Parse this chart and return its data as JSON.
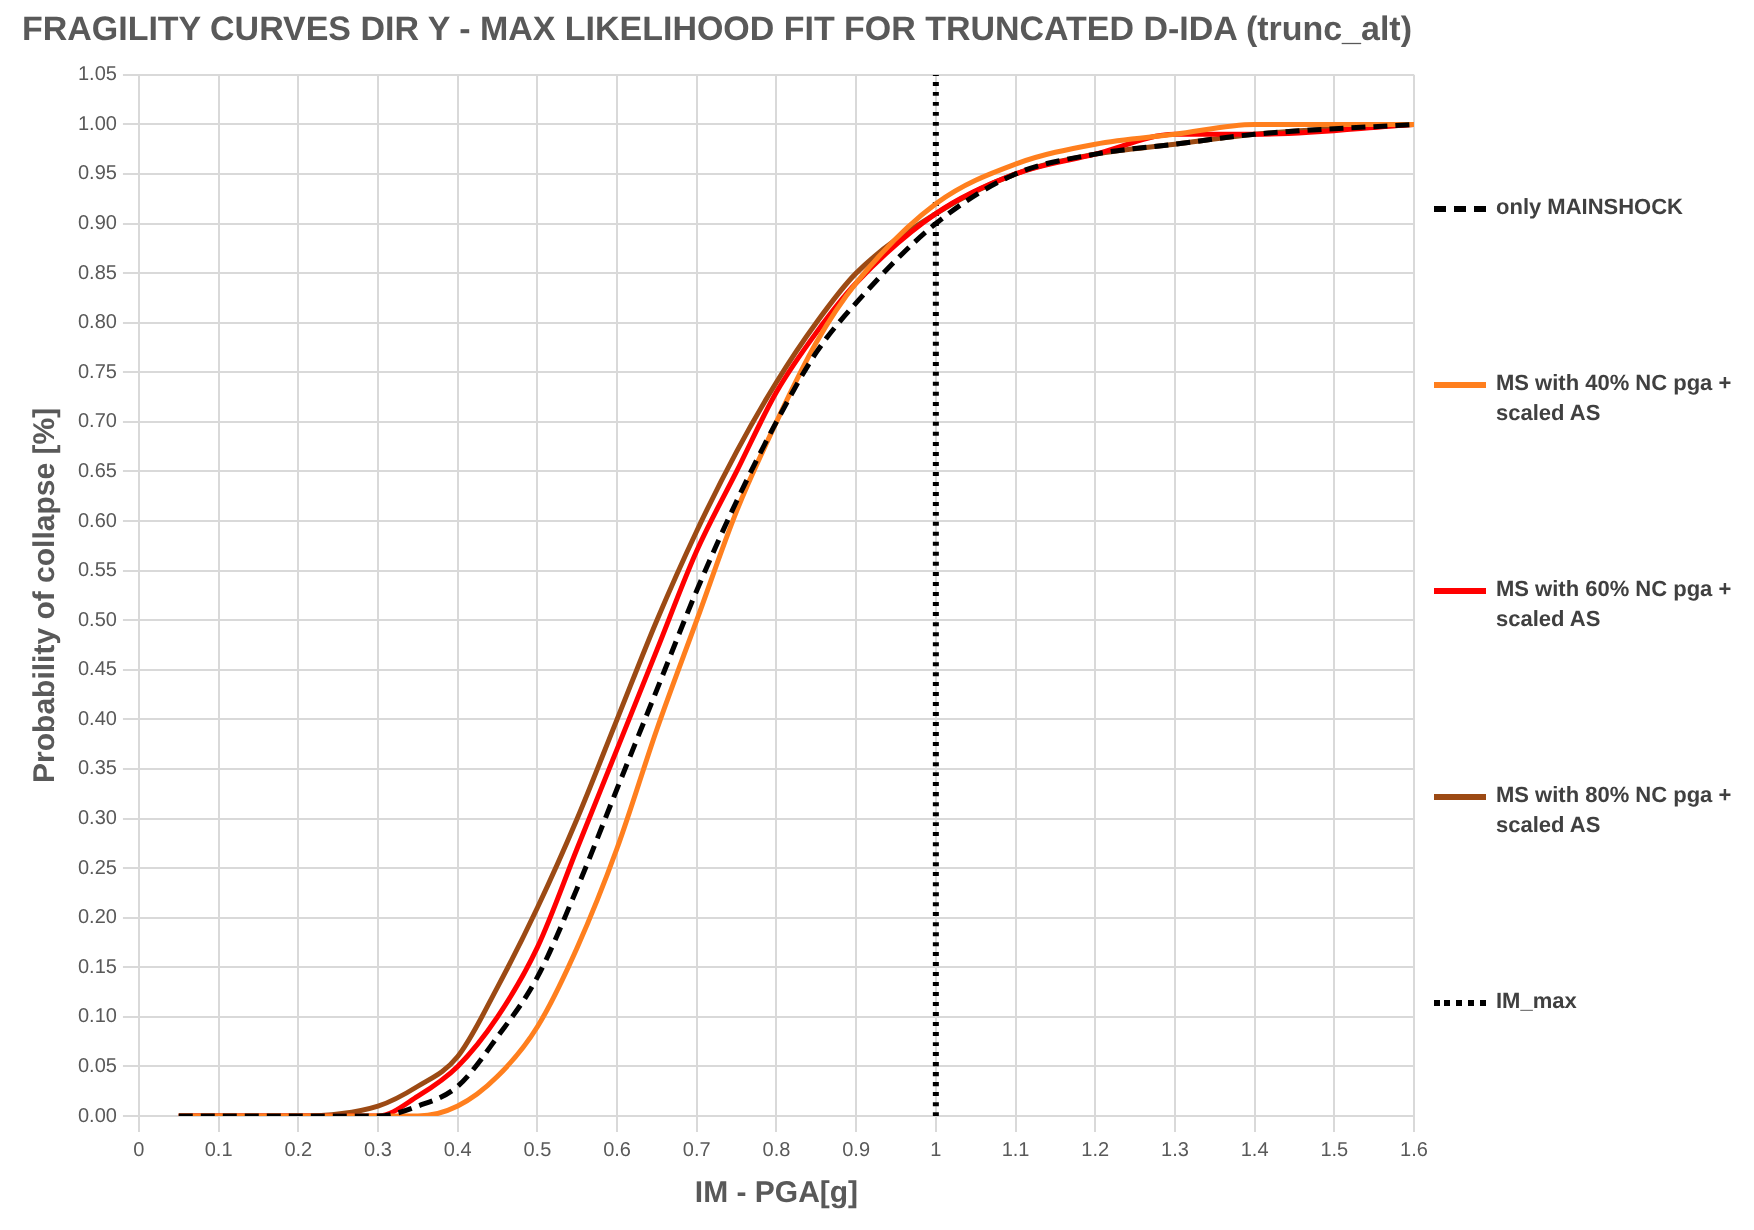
{
  "chart_data": {
    "type": "line",
    "title": "FRAGILITY CURVES DIR Y - MAX LIKELIHOOD FIT FOR TRUNCATED D-IDA (trunc_alt)",
    "xlabel": "IM - PGA[g]",
    "ylabel": "Probability of collapse [%]",
    "xlim": [
      0,
      1.6
    ],
    "xticks": [
      0,
      0.1,
      0.2,
      0.3,
      0.4,
      0.5,
      0.6,
      0.7,
      0.8,
      0.9,
      1,
      1.1,
      1.2,
      1.3,
      1.4,
      1.5,
      1.6
    ],
    "ylim": [
      0,
      1.05
    ],
    "yticks": [
      {
        "value": 0,
        "label": "0.00"
      },
      {
        "value": 0.05,
        "label": "0.05"
      },
      {
        "value": 0.1,
        "label": "0.10"
      },
      {
        "value": 0.15,
        "label": "0.15"
      },
      {
        "value": 0.2,
        "label": "0.20"
      },
      {
        "value": 0.25,
        "label": "0.25"
      },
      {
        "value": 0.3,
        "label": "0.30"
      },
      {
        "value": 0.35,
        "label": "0.35"
      },
      {
        "value": 0.4,
        "label": "0.40"
      },
      {
        "value": 0.45,
        "label": "0.45"
      },
      {
        "value": 0.5,
        "label": "0.50"
      },
      {
        "value": 0.55,
        "label": "0.55"
      },
      {
        "value": 0.6,
        "label": "0.60"
      },
      {
        "value": 0.65,
        "label": "0.65"
      },
      {
        "value": 0.7,
        "label": "0.70"
      },
      {
        "value": 0.75,
        "label": "0.75"
      },
      {
        "value": 0.8,
        "label": "0.80"
      },
      {
        "value": 0.85,
        "label": "0.85"
      },
      {
        "value": 0.9,
        "label": "0.90"
      },
      {
        "value": 0.95,
        "label": "0.95"
      },
      {
        "value": 1,
        "label": "1.00"
      },
      {
        "value": 1.05,
        "label": "1.05"
      }
    ],
    "grid": true,
    "legend": "right",
    "marker": "none",
    "x": [
      0.05,
      0.2,
      0.3,
      0.35,
      0.4,
      0.45,
      0.5,
      0.55,
      0.6,
      0.65,
      0.7,
      0.75,
      0.8,
      0.85,
      0.9,
      1,
      1.1,
      1.2,
      1.3,
      1.4,
      1.6
    ],
    "series": [
      {
        "name": "only MAINSHOCK",
        "color": "#000000",
        "line_style": "dashed",
        "values": [
          0,
          0,
          0,
          0.01,
          0.03,
          0.08,
          0.14,
          0.23,
          0.33,
          0.43,
          0.53,
          0.62,
          0.7,
          0.77,
          0.82,
          0.9,
          0.95,
          0.97,
          0.98,
          0.99,
          1
        ]
      },
      {
        "name": "MS with 40% NC pga + scaled AS",
        "color": "#ff7f1e",
        "line_style": "solid",
        "values": [
          0,
          0,
          0,
          0,
          0.01,
          0.04,
          0.09,
          0.17,
          0.27,
          0.39,
          0.5,
          0.61,
          0.7,
          0.78,
          0.84,
          0.92,
          0.96,
          0.98,
          0.99,
          1,
          1
        ]
      },
      {
        "name": "MS with 60% NC pga + scaled AS",
        "color": "#ff0000",
        "line_style": "solid",
        "values": [
          0,
          0,
          0,
          0.02,
          0.05,
          0.1,
          0.17,
          0.27,
          0.37,
          0.47,
          0.57,
          0.65,
          0.73,
          0.79,
          0.84,
          0.91,
          0.95,
          0.97,
          0.99,
          0.99,
          1
        ]
      },
      {
        "name": "MS with 80% NC pga + scaled AS",
        "color": "#9c4a14",
        "line_style": "solid",
        "values": [
          0,
          0,
          0.01,
          0.03,
          0.06,
          0.13,
          0.21,
          0.3,
          0.4,
          0.5,
          0.59,
          0.67,
          0.74,
          0.8,
          0.85,
          0.91,
          0.95,
          0.97,
          0.98,
          0.99,
          1
        ]
      },
      {
        "name": "IM_max",
        "color": "#000000",
        "line_style": "dotted",
        "x": [
          1,
          1
        ],
        "values": [
          0,
          1.05
        ]
      }
    ]
  }
}
